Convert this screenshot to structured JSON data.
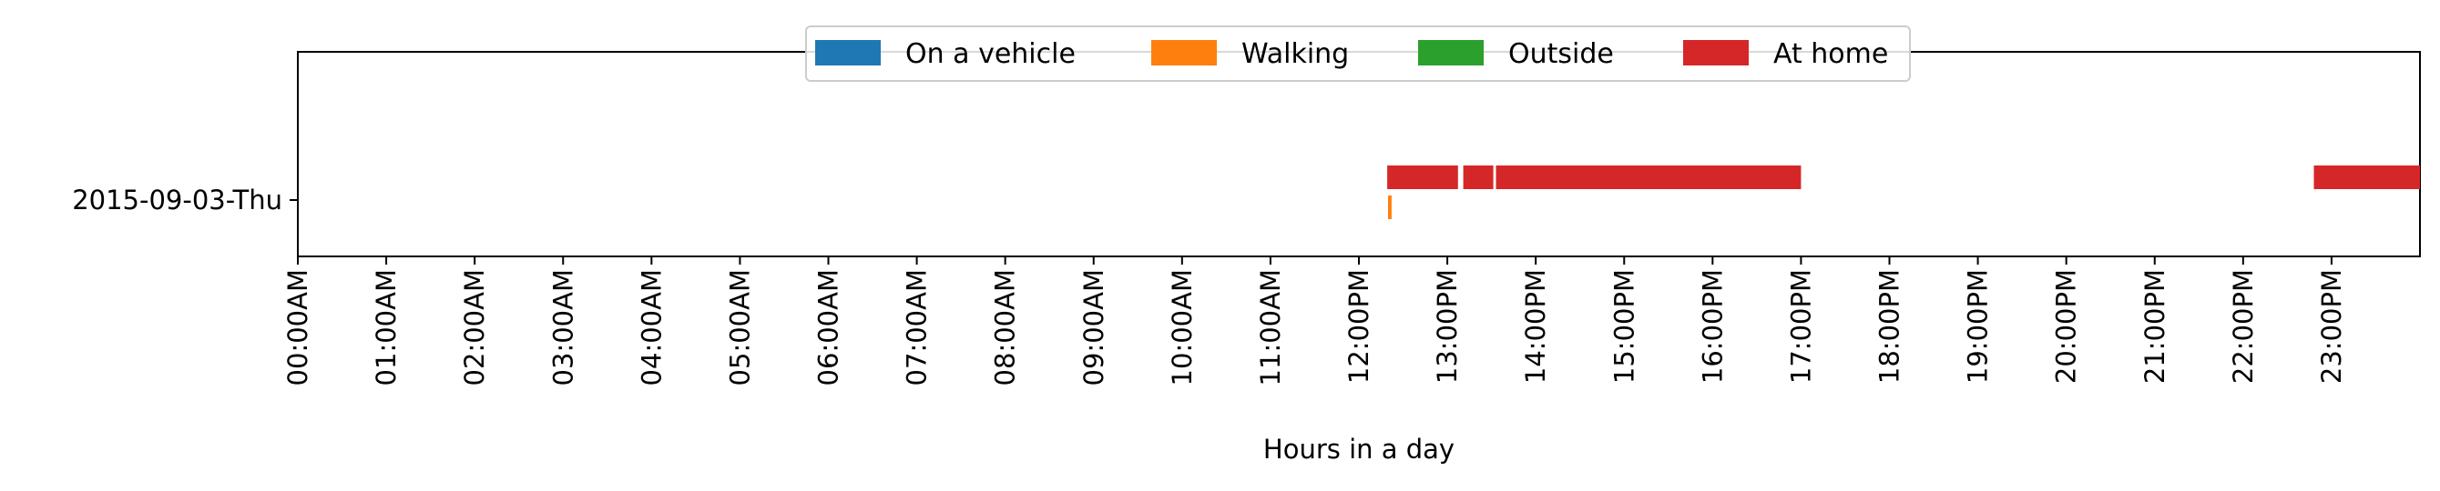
{
  "chart_data": {
    "type": "timeline",
    "xlabel": "Hours in a day",
    "xlim": [
      0,
      24
    ],
    "x_tick_labels": [
      "00:00AM",
      "01:00AM",
      "02:00AM",
      "03:00AM",
      "04:00AM",
      "05:00AM",
      "06:00AM",
      "07:00AM",
      "08:00AM",
      "09:00AM",
      "10:00AM",
      "11:00AM",
      "12:00PM",
      "13:00PM",
      "14:00PM",
      "15:00PM",
      "16:00PM",
      "17:00PM",
      "18:00PM",
      "19:00PM",
      "20:00PM",
      "21:00PM",
      "22:00PM",
      "23:00PM"
    ],
    "y_categories": [
      "2015-09-03-Thu"
    ],
    "legend_placement": "top-center",
    "grid": false,
    "series": [
      {
        "name": "On a vehicle",
        "color": "#1f77b4",
        "lane": "vehicle",
        "intervals": []
      },
      {
        "name": "Walking",
        "color": "#ff7f0e",
        "lane": "walking",
        "intervals": [
          [
            12.33,
            12.37
          ]
        ]
      },
      {
        "name": "Outside",
        "color": "#2ca02c",
        "lane": "outside",
        "intervals": []
      },
      {
        "name": "At home",
        "color": "#d62728",
        "lane": "home",
        "intervals": [
          [
            12.32,
            13.12
          ],
          [
            13.18,
            13.52
          ],
          [
            13.55,
            17.0
          ],
          [
            22.8,
            24.0
          ]
        ]
      }
    ]
  }
}
